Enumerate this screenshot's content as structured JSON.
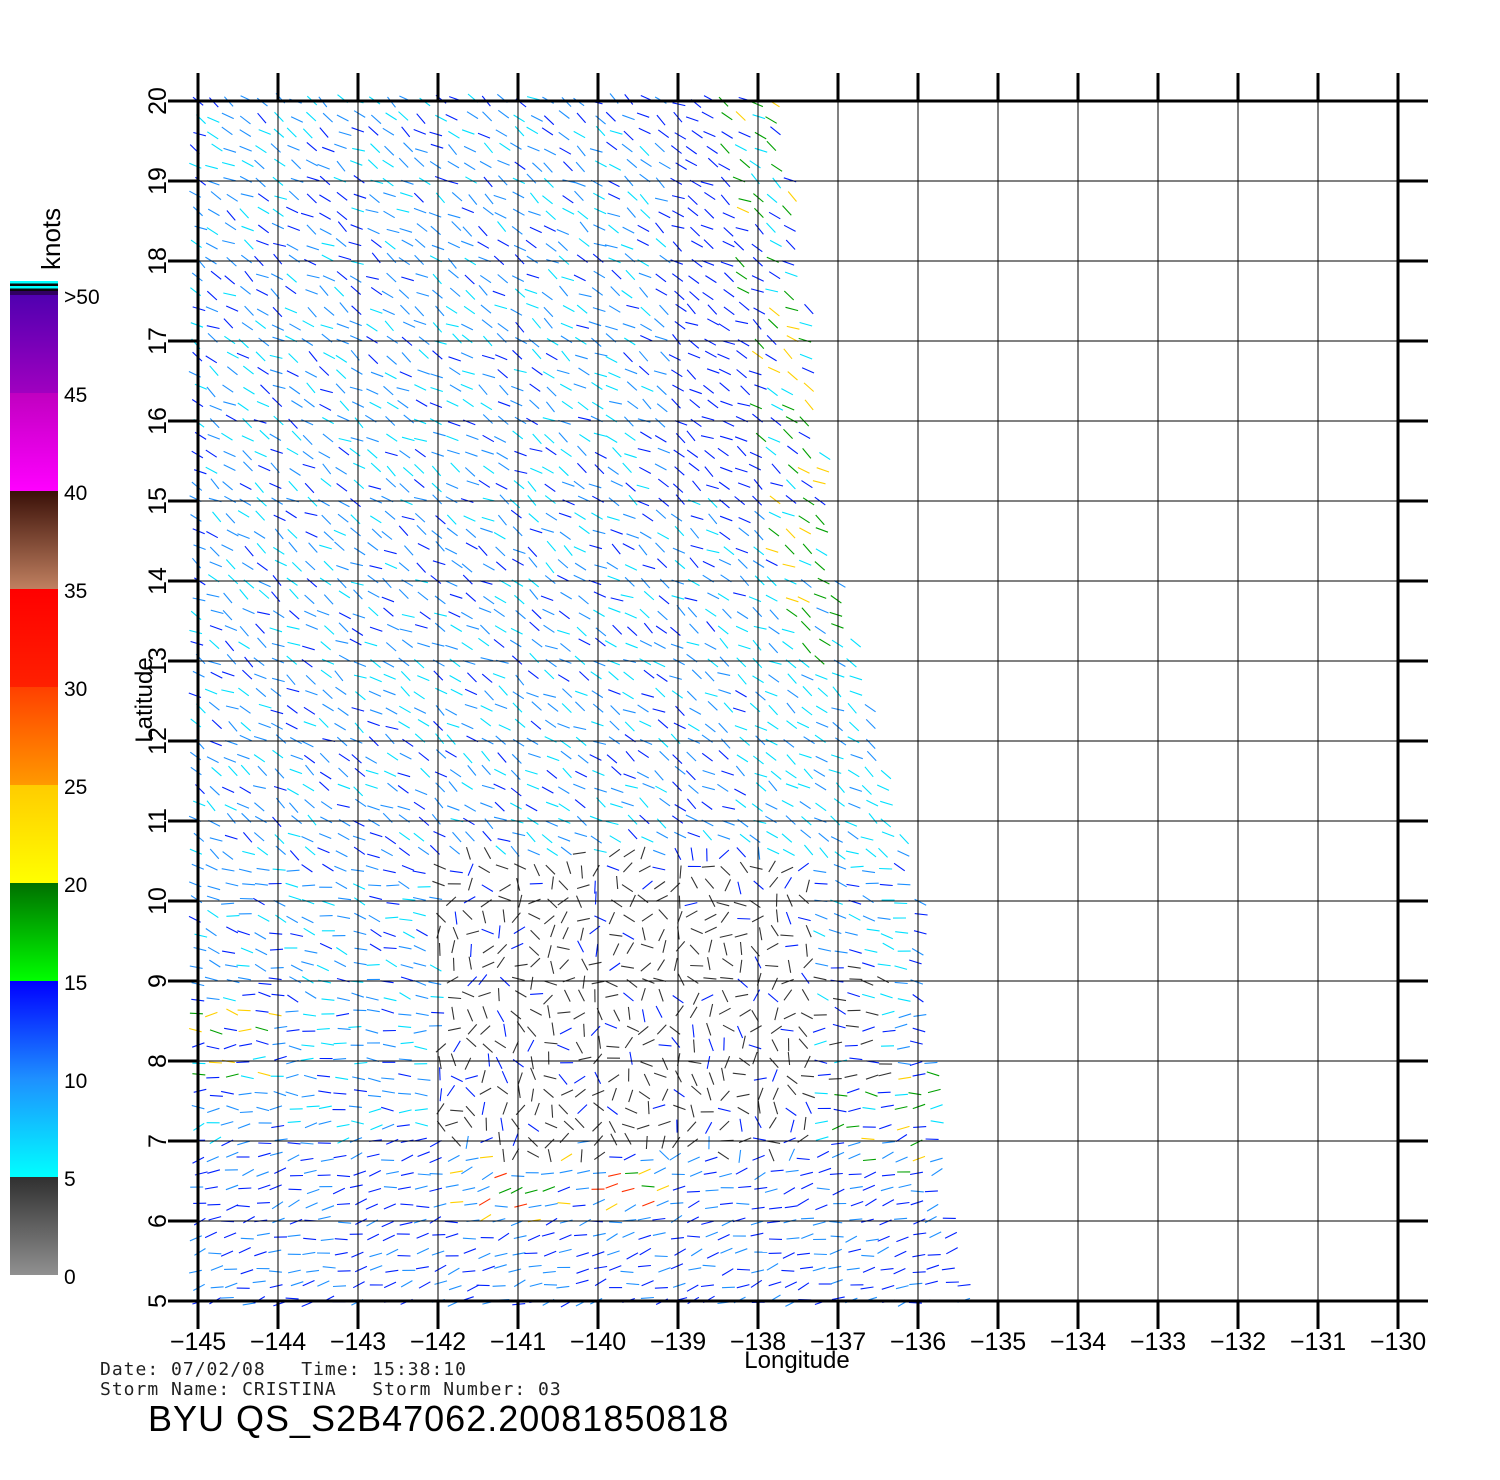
{
  "map": {
    "xlabel": "Longitude",
    "ylabel": "Latitude",
    "lon_range": [
      -145,
      -130
    ],
    "lat_range": [
      5,
      20
    ],
    "lon_ticks": [
      -145,
      -144,
      -143,
      -142,
      -141,
      -140,
      -139,
      -138,
      -137,
      -136,
      -135,
      -134,
      -133,
      -132,
      -131,
      -130
    ],
    "lat_ticks": [
      5,
      6,
      7,
      8,
      9,
      10,
      11,
      12,
      13,
      14,
      15,
      16,
      17,
      18,
      19,
      20
    ],
    "lon_tick_labels": [
      "−145",
      "−144",
      "−143",
      "−142",
      "−141",
      "−140",
      "−139",
      "−138",
      "−137",
      "−136",
      "−135",
      "−134",
      "−133",
      "−132",
      "−131",
      "−130"
    ],
    "lat_tick_labels": [
      "5",
      "6",
      "7",
      "8",
      "9",
      "10",
      "11",
      "12",
      "13",
      "14",
      "15",
      "16",
      "17",
      "18",
      "19",
      "20"
    ],
    "swath": {
      "right_edge": [
        [
          20,
          -137.7
        ],
        [
          14,
          -137.0
        ],
        [
          12,
          -136.5
        ],
        [
          10,
          -136.0
        ],
        [
          8,
          -135.8
        ],
        [
          6,
          -135.6
        ],
        [
          5,
          -135.3
        ]
      ]
    }
  },
  "legend": {
    "title": "knots",
    "bands": [
      {
        "from": 0,
        "to": 5,
        "top": "#303030",
        "bottom": "#909090"
      },
      {
        "from": 5,
        "to": 10,
        "top": "#1e90ff",
        "bottom": "#00ffff"
      },
      {
        "from": 10,
        "to": 15,
        "top": "#0000ff",
        "bottom": "#1e90ff"
      },
      {
        "from": 15,
        "to": 20,
        "top": "#007000",
        "bottom": "#00ff00"
      },
      {
        "from": 20,
        "to": 25,
        "top": "#ffcc00",
        "bottom": "#ffff00"
      },
      {
        "from": 25,
        "to": 30,
        "top": "#ff4000",
        "bottom": "#ff9900"
      },
      {
        "from": 30,
        "to": 35,
        "top": "#ff0000",
        "bottom": "#ff2000"
      },
      {
        "from": 35,
        "to": 40,
        "top": "#3a1008",
        "bottom": "#c08060"
      },
      {
        "from": 40,
        "to": 45,
        "top": "#c000c0",
        "bottom": "#ff00ff"
      },
      {
        "from": 45,
        "to": 50,
        "top": "#5000b0",
        "bottom": "#a000c0"
      }
    ],
    "labels": [
      "0",
      "5",
      "10",
      "15",
      "20",
      "25",
      "30",
      "35",
      "40",
      "45",
      ">50"
    ]
  },
  "wind_colors": {
    "calm": "#333333",
    "light": "#00e0ff",
    "moderate": "#1e90ff",
    "fresh": "#0020ff",
    "strong": "#00a000",
    "gale": "#ffd000",
    "storm": "#ff3000"
  },
  "info": {
    "date_label": "Date:",
    "date": "07/02/08",
    "time_label": "Time:",
    "time": "15:38:10",
    "storm_name_label": "Storm Name:",
    "storm_name": "CRISTINA",
    "storm_number_label": "Storm Number:",
    "storm_number": "03",
    "product": "BYU QS_S2B47062.20081850818"
  }
}
